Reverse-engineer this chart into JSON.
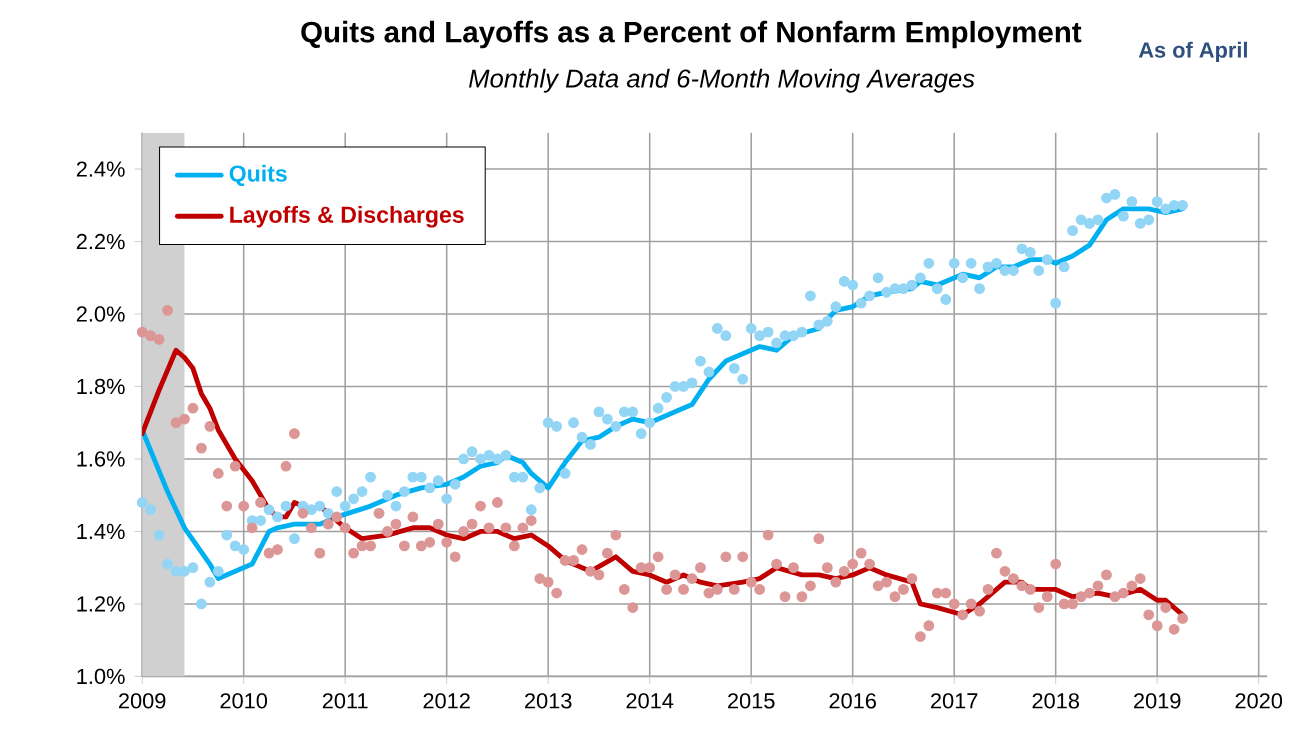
{
  "chart_data": {
    "type": "scatter",
    "title": "Quits and Layoffs as a Percent of Nonfarm Employment",
    "subtitle": "Monthly Data and 6-Month Moving Averages",
    "annotations": [
      "As of April"
    ],
    "x": [
      "2009-01",
      "2009-02",
      "2009-03",
      "2009-04",
      "2009-05",
      "2009-06",
      "2009-07",
      "2009-08",
      "2009-09",
      "2009-10",
      "2009-11",
      "2009-12",
      "2010-01",
      "2010-02",
      "2010-03",
      "2010-04",
      "2010-05",
      "2010-06",
      "2010-07",
      "2010-08",
      "2010-09",
      "2010-10",
      "2010-11",
      "2010-12",
      "2011-01",
      "2011-02",
      "2011-03",
      "2011-04",
      "2011-05",
      "2011-06",
      "2011-07",
      "2011-08",
      "2011-09",
      "2011-10",
      "2011-11",
      "2011-12",
      "2012-01",
      "2012-02",
      "2012-03",
      "2012-04",
      "2012-05",
      "2012-06",
      "2012-07",
      "2012-08",
      "2012-09",
      "2012-10",
      "2012-11",
      "2012-12",
      "2013-01",
      "2013-02",
      "2013-03",
      "2013-04",
      "2013-05",
      "2013-06",
      "2013-07",
      "2013-08",
      "2013-09",
      "2013-10",
      "2013-11",
      "2013-12",
      "2014-01",
      "2014-02",
      "2014-03",
      "2014-04",
      "2014-05",
      "2014-06",
      "2014-07",
      "2014-08",
      "2014-09",
      "2014-10",
      "2014-11",
      "2014-12",
      "2015-01",
      "2015-02",
      "2015-03",
      "2015-04",
      "2015-05",
      "2015-06",
      "2015-07",
      "2015-08",
      "2015-09",
      "2015-10",
      "2015-11",
      "2015-12",
      "2016-01",
      "2016-02",
      "2016-03",
      "2016-04",
      "2016-05",
      "2016-06",
      "2016-07",
      "2016-08",
      "2016-09",
      "2016-10",
      "2016-11",
      "2016-12",
      "2017-01",
      "2017-02",
      "2017-03",
      "2017-04",
      "2017-05",
      "2017-06",
      "2017-07",
      "2017-08",
      "2017-09",
      "2017-10",
      "2017-11",
      "2017-12",
      "2018-01",
      "2018-02",
      "2018-03",
      "2018-04",
      "2018-05",
      "2018-06",
      "2018-07",
      "2018-08",
      "2018-09",
      "2018-10",
      "2018-11",
      "2018-12",
      "2019-01",
      "2019-02",
      "2019-03",
      "2019-04"
    ],
    "series": [
      {
        "marker": "circle",
        "color": "#92d5f5",
        "values": [
          1.48,
          1.46,
          1.39,
          1.31,
          1.29,
          1.29,
          1.3,
          1.2,
          1.26,
          1.29,
          1.39,
          1.36,
          1.35,
          1.43,
          1.43,
          1.46,
          1.44,
          1.47,
          1.38,
          1.47,
          1.46,
          1.47,
          1.45,
          1.51,
          1.47,
          1.49,
          1.51,
          1.55,
          1.45,
          1.5,
          1.47,
          1.51,
          1.55,
          1.55,
          1.52,
          1.54,
          1.49,
          1.53,
          1.6,
          1.62,
          1.6,
          1.61,
          1.6,
          1.61,
          1.55,
          1.55,
          1.46,
          1.52,
          1.7,
          1.69,
          1.56,
          1.7,
          1.66,
          1.64,
          1.73,
          1.71,
          1.69,
          1.73,
          1.73,
          1.67,
          1.7,
          1.74,
          1.77,
          1.8,
          1.8,
          1.81,
          1.87,
          1.84,
          1.96,
          1.94,
          1.85,
          1.82,
          1.96,
          1.94,
          1.95,
          1.92,
          1.94,
          1.94,
          1.95,
          2.05,
          1.97,
          1.98,
          2.02,
          2.09,
          2.08,
          2.03,
          2.05,
          2.1,
          2.06,
          2.07,
          2.07,
          2.08,
          2.1,
          2.14,
          2.07,
          2.04,
          2.14,
          2.1,
          2.14,
          2.07,
          2.13,
          2.14,
          2.12,
          2.12,
          2.18,
          2.17,
          2.12,
          2.15,
          2.03,
          2.13,
          2.23,
          2.26,
          2.25,
          2.26,
          2.32,
          2.33,
          2.27,
          2.31,
          2.25,
          2.26,
          2.31,
          2.29,
          2.3,
          2.3
        ]
      },
      {
        "marker": "circle",
        "color": "#dc9696",
        "values": [
          1.95,
          1.94,
          1.93,
          2.01,
          1.7,
          1.71,
          1.74,
          1.63,
          1.69,
          1.56,
          1.47,
          1.58,
          1.47,
          1.41,
          1.48,
          1.34,
          1.35,
          1.58,
          1.67,
          1.45,
          1.41,
          1.34,
          1.42,
          1.44,
          1.41,
          1.34,
          1.36,
          1.36,
          1.45,
          1.4,
          1.42,
          1.36,
          1.44,
          1.36,
          1.37,
          1.42,
          1.37,
          1.33,
          1.4,
          1.42,
          1.47,
          1.41,
          1.48,
          1.41,
          1.36,
          1.41,
          1.43,
          1.27,
          1.26,
          1.23,
          1.32,
          1.32,
          1.35,
          1.29,
          1.28,
          1.34,
          1.39,
          1.24,
          1.19,
          1.3,
          1.3,
          1.33,
          1.24,
          1.28,
          1.24,
          1.27,
          1.3,
          1.23,
          1.24,
          1.33,
          1.24,
          1.33,
          1.26,
          1.24,
          1.39,
          1.31,
          1.22,
          1.3,
          1.22,
          1.25,
          1.38,
          1.3,
          1.26,
          1.29,
          1.31,
          1.34,
          1.31,
          1.25,
          1.26,
          1.22,
          1.24,
          1.27,
          1.11,
          1.14,
          1.23,
          1.23,
          1.2,
          1.17,
          1.2,
          1.18,
          1.24,
          1.34,
          1.29,
          1.27,
          1.25,
          1.24,
          1.19,
          1.22,
          1.31,
          1.2,
          1.2,
          1.22,
          1.23,
          1.25,
          1.28,
          1.22,
          1.23,
          1.25,
          1.27,
          1.17,
          1.14,
          1.19,
          1.13,
          1.16
        ]
      },
      {
        "type": "line",
        "marker": "none",
        "name": "Quits",
        "color": "#00b0f0",
        "x": [
          "2009-01",
          "2009-04",
          "2009-06",
          "2009-09",
          "2009-10",
          "2009-12",
          "2010-02",
          "2010-04",
          "2010-05",
          "2010-07",
          "2010-10",
          "2010-12",
          "2011-04",
          "2011-07",
          "2011-10",
          "2012-01",
          "2012-03",
          "2012-05",
          "2012-07",
          "2012-08",
          "2012-10",
          "2012-11",
          "2013-01",
          "2013-03",
          "2013-05",
          "2013-07",
          "2013-09",
          "2013-11",
          "2014-01",
          "2014-04",
          "2014-06",
          "2014-08",
          "2014-10",
          "2014-12",
          "2015-02",
          "2015-04",
          "2015-06",
          "2015-09",
          "2015-11",
          "2016-01",
          "2016-03",
          "2016-05",
          "2016-08",
          "2016-09",
          "2016-11",
          "2017-02",
          "2017-04",
          "2017-06",
          "2017-08",
          "2017-10",
          "2017-12",
          "2018-01",
          "2018-03",
          "2018-05",
          "2018-07",
          "2018-09",
          "2018-12",
          "2019-02",
          "2019-04"
        ],
        "values": [
          1.68,
          1.51,
          1.41,
          1.31,
          1.27,
          1.29,
          1.31,
          1.4,
          1.41,
          1.42,
          1.42,
          1.44,
          1.47,
          1.5,
          1.52,
          1.53,
          1.55,
          1.58,
          1.59,
          1.61,
          1.59,
          1.56,
          1.52,
          1.59,
          1.65,
          1.66,
          1.69,
          1.71,
          1.7,
          1.73,
          1.75,
          1.82,
          1.87,
          1.89,
          1.91,
          1.9,
          1.94,
          1.96,
          2.01,
          2.02,
          2.05,
          2.06,
          2.07,
          2.09,
          2.08,
          2.11,
          2.1,
          2.13,
          2.13,
          2.15,
          2.15,
          2.14,
          2.16,
          2.19,
          2.26,
          2.29,
          2.29,
          2.28,
          2.29
        ]
      },
      {
        "type": "line",
        "marker": "none",
        "name": "Layoffs & Discharges",
        "color": "#c00000",
        "x": [
          "2009-01",
          "2009-03",
          "2009-05",
          "2009-06",
          "2009-07",
          "2009-08",
          "2009-09",
          "2009-10",
          "2009-12",
          "2010-02",
          "2010-04",
          "2010-05",
          "2010-06",
          "2010-07",
          "2010-09",
          "2010-10",
          "2010-11",
          "2011-01",
          "2011-03",
          "2011-06",
          "2011-09",
          "2011-11",
          "2012-01",
          "2012-03",
          "2012-05",
          "2012-07",
          "2012-09",
          "2012-11",
          "2013-01",
          "2013-03",
          "2013-06",
          "2013-09",
          "2013-11",
          "2014-01",
          "2014-03",
          "2014-05",
          "2014-07",
          "2014-09",
          "2014-12",
          "2015-02",
          "2015-04",
          "2015-07",
          "2015-09",
          "2015-11",
          "2016-01",
          "2016-03",
          "2016-05",
          "2016-08",
          "2016-09",
          "2016-11",
          "2017-02",
          "2017-04",
          "2017-07",
          "2017-09",
          "2017-10",
          "2018-01",
          "2018-03",
          "2018-06",
          "2018-08",
          "2018-11",
          "2019-01",
          "2019-02",
          "2019-04"
        ],
        "values": [
          1.67,
          1.79,
          1.9,
          1.88,
          1.85,
          1.78,
          1.74,
          1.68,
          1.6,
          1.54,
          1.46,
          1.44,
          1.44,
          1.48,
          1.46,
          1.47,
          1.45,
          1.41,
          1.38,
          1.39,
          1.41,
          1.41,
          1.39,
          1.38,
          1.4,
          1.4,
          1.38,
          1.39,
          1.36,
          1.32,
          1.29,
          1.33,
          1.29,
          1.28,
          1.26,
          1.28,
          1.26,
          1.25,
          1.26,
          1.27,
          1.3,
          1.28,
          1.28,
          1.27,
          1.28,
          1.3,
          1.28,
          1.26,
          1.2,
          1.19,
          1.17,
          1.2,
          1.26,
          1.26,
          1.24,
          1.24,
          1.22,
          1.23,
          1.22,
          1.24,
          1.21,
          1.21,
          1.17
        ]
      }
    ],
    "bands": [
      {
        "axis": "x",
        "from": "2009-01",
        "to": "2009-06",
        "color": "#d0d0d0"
      }
    ],
    "xlim": [
      "2009-01",
      "2020-02"
    ],
    "xticks": [
      "2009",
      "2010",
      "2011",
      "2012",
      "2013",
      "2014",
      "2015",
      "2016",
      "2017",
      "2018",
      "2019",
      "2020"
    ],
    "ylim": [
      1.0,
      2.5
    ],
    "yticks": [
      {
        "value": 1.0,
        "label": "1.0%"
      },
      {
        "value": 1.2,
        "label": "1.2%"
      },
      {
        "value": 1.4,
        "label": "1.4%"
      },
      {
        "value": 1.6,
        "label": "1.6%"
      },
      {
        "value": 1.8,
        "label": "1.8%"
      },
      {
        "value": 2.0,
        "label": "2.0%"
      },
      {
        "value": 2.2,
        "label": "2.2%"
      },
      {
        "value": 2.4,
        "label": "2.4%"
      }
    ],
    "grid": true,
    "legend": "top left"
  }
}
